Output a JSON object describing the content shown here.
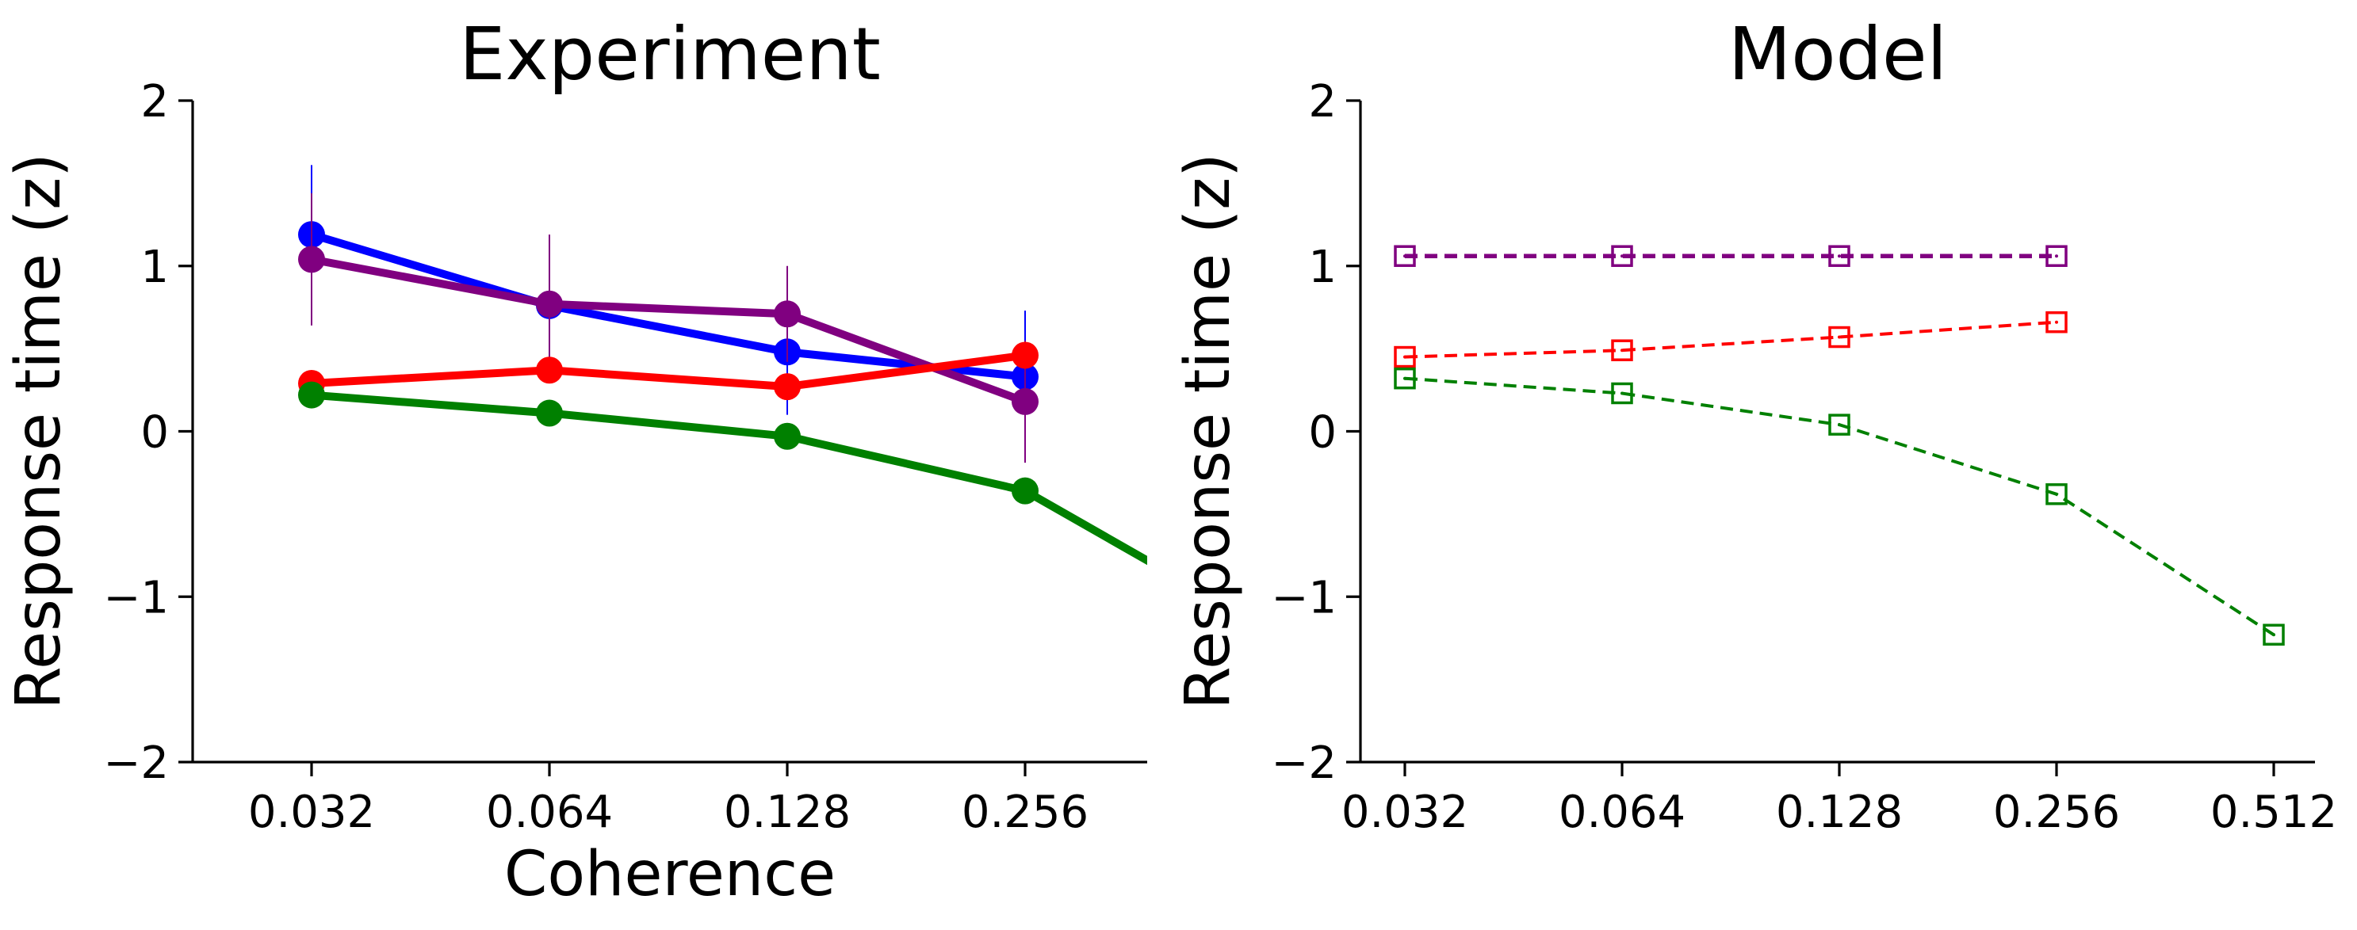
{
  "chart_data": [
    {
      "type": "line",
      "title": "Experiment",
      "xlabel": "Coherence",
      "ylabel": "Response time (z)",
      "x_scale": "log2",
      "x_tick_labels": [
        "0.032",
        "0.064",
        "0.128",
        "0.256"
      ],
      "x": [
        0.032,
        0.064,
        0.128,
        0.256
      ],
      "ylim": [
        -2,
        2
      ],
      "y_ticks": [
        "−2",
        "−1",
        "0",
        "1",
        "2"
      ],
      "grid": false,
      "series": [
        {
          "color": "#0000ff",
          "x": [
            0.032,
            0.064,
            0.128,
            0.256
          ],
          "values": [
            1.19,
            0.76,
            0.48,
            0.33
          ],
          "error": [
            0.42,
            0,
            0.38,
            0.4
          ],
          "marker": "circle",
          "linestyle": "solid"
        },
        {
          "color": "#800080",
          "x": [
            0.032,
            0.064,
            0.128,
            0.256
          ],
          "values": [
            1.04,
            0.77,
            0.71,
            0.18
          ],
          "error": [
            0.4,
            0.42,
            0.29,
            0.37
          ],
          "marker": "circle",
          "linestyle": "solid"
        },
        {
          "color": "#ff0000",
          "x": [
            0.032,
            0.064,
            0.128,
            0.256
          ],
          "values": [
            0.29,
            0.37,
            0.27,
            0.46
          ],
          "error": [
            0,
            0,
            0,
            0
          ],
          "marker": "circle",
          "linestyle": "solid"
        },
        {
          "color": "#008000",
          "x": [
            0.032,
            0.064,
            0.128,
            0.256,
            0.512
          ],
          "values": [
            0.22,
            0.11,
            -0.03,
            -0.36,
            -1.18
          ],
          "error": [
            0,
            0,
            0,
            0,
            0
          ],
          "marker": "circle",
          "linestyle": "solid"
        }
      ]
    },
    {
      "type": "line",
      "title": "Model",
      "xlabel": "",
      "ylabel": "Response time (z)",
      "x_scale": "log2",
      "x_tick_labels": [
        "0.032",
        "0.064",
        "0.128",
        "0.256",
        "0.512"
      ],
      "x": [
        0.032,
        0.064,
        0.128,
        0.256,
        0.512
      ],
      "ylim": [
        -2,
        2
      ],
      "y_ticks": [
        "−2",
        "−1",
        "0",
        "1",
        "2"
      ],
      "grid": false,
      "series": [
        {
          "color": "#800080",
          "x": [
            0.032,
            0.064,
            0.128,
            0.256
          ],
          "values": [
            1.06,
            1.06,
            1.06,
            1.06
          ],
          "marker": "square-open",
          "linestyle": "dashed",
          "width": 5.5
        },
        {
          "color": "#ff0000",
          "x": [
            0.032,
            0.064,
            0.128,
            0.256
          ],
          "values": [
            0.45,
            0.49,
            0.57,
            0.66
          ],
          "marker": "square-open",
          "linestyle": "dashed",
          "width": 4
        },
        {
          "color": "#008000",
          "x": [
            0.032,
            0.064,
            0.128,
            0.256,
            0.512
          ],
          "values": [
            0.32,
            0.23,
            0.04,
            -0.38,
            -1.23
          ],
          "marker": "square-open",
          "linestyle": "dashed",
          "width": 4
        }
      ]
    }
  ]
}
